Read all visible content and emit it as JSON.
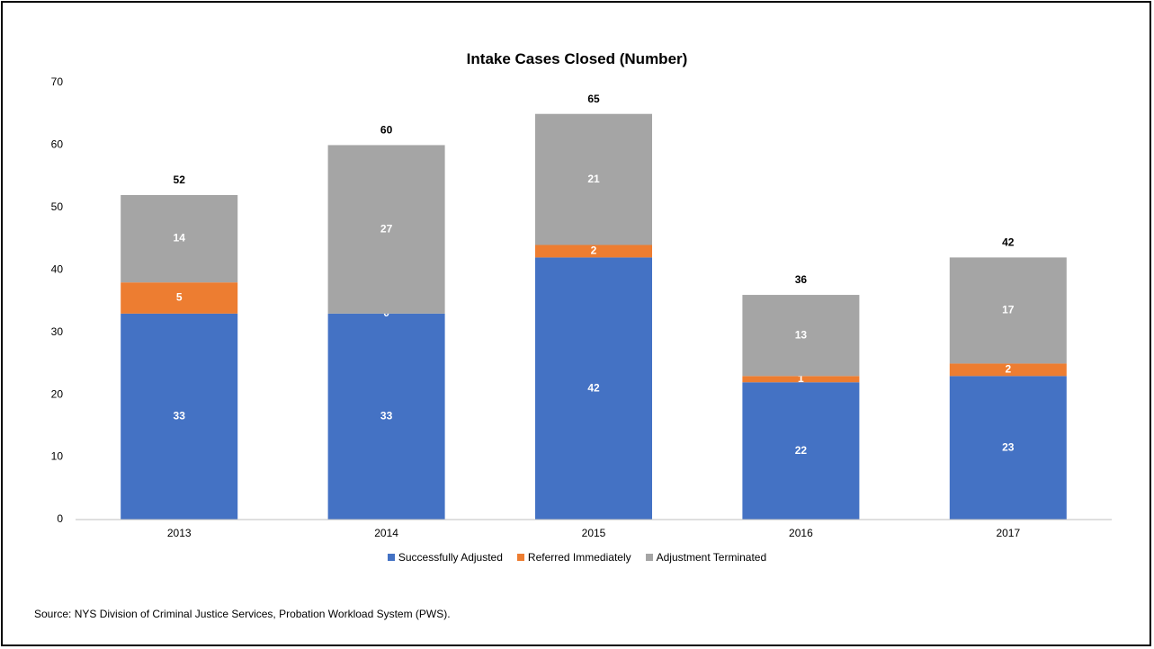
{
  "colors": {
    "successfully_adjusted": "#4472C4",
    "referred_immediately": "#ED7D31",
    "adjustment_terminated": "#A5A5A5",
    "axis": "#BFBFBF"
  },
  "source_note": "Source: NYS Division of Criminal Justice Services, Probation Workload System (PWS).",
  "chart_data": {
    "type": "bar",
    "stacked": true,
    "title": "Intake Cases Closed (Number)",
    "xlabel": "",
    "ylabel": "",
    "ylim": [
      0,
      70
    ],
    "yticks": [
      0,
      10,
      20,
      30,
      40,
      50,
      60,
      70
    ],
    "grid": false,
    "legend_position": "bottom",
    "categories": [
      "2013",
      "2014",
      "2015",
      "2016",
      "2017"
    ],
    "series": [
      {
        "name": "Successfully Adjusted",
        "values": [
          33,
          33,
          42,
          22,
          23
        ]
      },
      {
        "name": "Referred Immediately",
        "values": [
          5,
          0,
          2,
          1,
          2
        ]
      },
      {
        "name": "Adjustment Terminated",
        "values": [
          14,
          27,
          21,
          13,
          17
        ]
      }
    ],
    "totals": [
      52,
      60,
      65,
      36,
      42
    ]
  }
}
